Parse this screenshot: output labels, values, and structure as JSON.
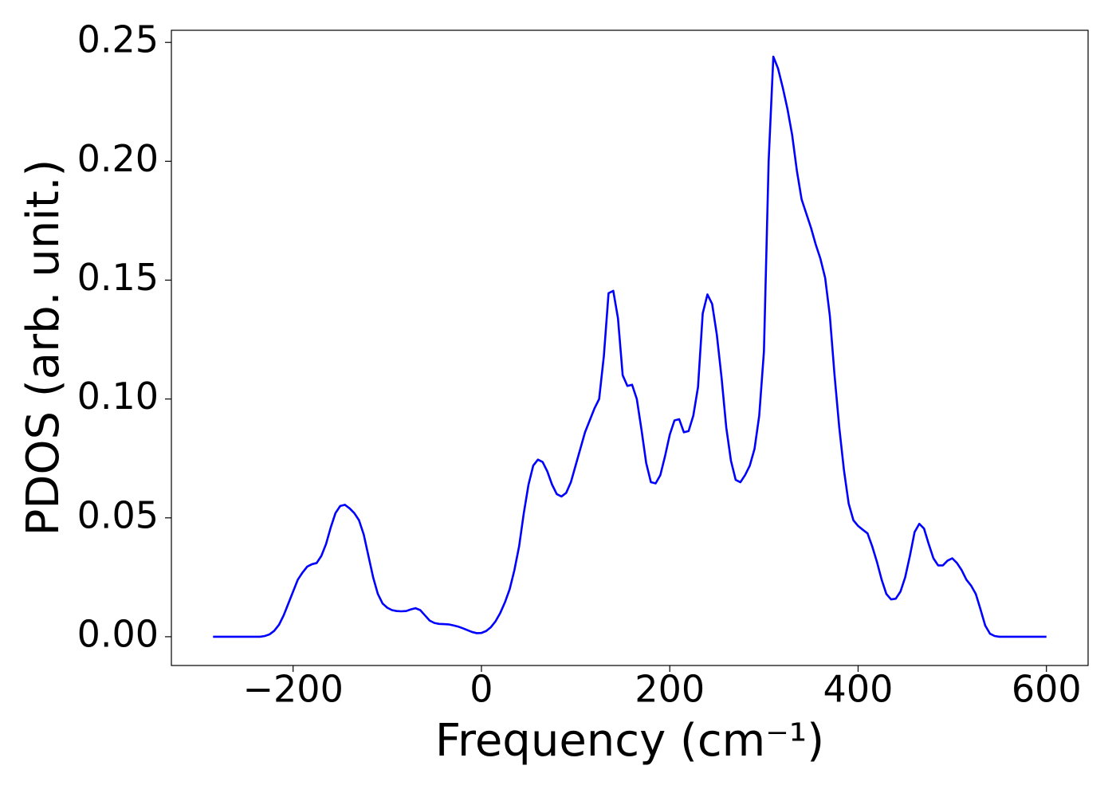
{
  "chart_data": {
    "type": "line",
    "xlabel": "Frequency (cm⁻¹)",
    "ylabel": "PDOS (arb. unit.)",
    "color": "#0000ff",
    "grid": false,
    "xlim": [
      -329.25,
      644.25
    ],
    "ylim": [
      -0.0121,
      0.2551
    ],
    "xticks": [
      {
        "value": -200,
        "label": "−200"
      },
      0,
      200,
      400,
      600
    ],
    "yticks": [
      {
        "value": 0,
        "label": "0.00"
      },
      {
        "value": 0.05,
        "label": "0.05"
      },
      {
        "value": 0.1,
        "label": "0.10"
      },
      {
        "value": 0.15,
        "label": "0.15"
      },
      {
        "value": 0.2,
        "label": "0.20"
      },
      {
        "value": 0.25,
        "label": "0.25"
      }
    ],
    "x": [
      -285,
      -280,
      -275,
      -270,
      -265,
      -260,
      -255,
      -250,
      -245,
      -240,
      -235,
      -230,
      -225,
      -220,
      -215,
      -210,
      -205,
      -200,
      -195,
      -190,
      -185,
      -180,
      -175,
      -170,
      -165,
      -160,
      -155,
      -150,
      -145,
      -140,
      -135,
      -130,
      -125,
      -120,
      -115,
      -110,
      -105,
      -100,
      -95,
      -90,
      -85,
      -80,
      -75,
      -70,
      -65,
      -60,
      -55,
      -50,
      -45,
      -40,
      -35,
      -30,
      -25,
      -20,
      -15,
      -10,
      -5,
      0,
      5,
      10,
      15,
      20,
      25,
      30,
      35,
      40,
      45,
      50,
      55,
      60,
      65,
      70,
      75,
      80,
      85,
      90,
      95,
      100,
      105,
      110,
      115,
      120,
      125,
      130,
      135,
      140,
      145,
      150,
      155,
      160,
      165,
      170,
      175,
      180,
      185,
      190,
      195,
      200,
      205,
      210,
      215,
      220,
      225,
      230,
      235,
      240,
      245,
      250,
      255,
      260,
      265,
      270,
      275,
      280,
      285,
      290,
      295,
      300,
      305,
      310,
      315,
      320,
      325,
      330,
      335,
      340,
      345,
      350,
      355,
      360,
      365,
      370,
      375,
      380,
      385,
      390,
      395,
      400,
      405,
      410,
      415,
      420,
      425,
      430,
      435,
      440,
      445,
      450,
      455,
      460,
      465,
      470,
      475,
      480,
      485,
      490,
      495,
      500,
      505,
      510,
      515,
      520,
      525,
      530,
      535,
      540,
      545,
      550,
      555,
      560,
      565,
      570,
      575,
      580,
      585,
      590,
      595,
      600
    ],
    "values": [
      0,
      0,
      0,
      0,
      0,
      0,
      0,
      0,
      0,
      0,
      0,
      0.0003,
      0.001,
      0.0025,
      0.005,
      0.009,
      0.014,
      0.019,
      0.024,
      0.027,
      0.0295,
      0.0305,
      0.031,
      0.034,
      0.039,
      0.046,
      0.052,
      0.055,
      0.0555,
      0.054,
      0.052,
      0.049,
      0.043,
      0.034,
      0.025,
      0.018,
      0.014,
      0.0122,
      0.0112,
      0.0108,
      0.0107,
      0.0108,
      0.0115,
      0.012,
      0.0112,
      0.009,
      0.0068,
      0.0058,
      0.0054,
      0.0053,
      0.0052,
      0.0048,
      0.0043,
      0.0036,
      0.0028,
      0.002,
      0.0015,
      0.0016,
      0.0024,
      0.004,
      0.0065,
      0.01,
      0.0145,
      0.02,
      0.028,
      0.038,
      0.052,
      0.064,
      0.072,
      0.0745,
      0.0735,
      0.0695,
      0.064,
      0.06,
      0.059,
      0.0605,
      0.065,
      0.072,
      0.079,
      0.086,
      0.091,
      0.096,
      0.1,
      0.118,
      0.1445,
      0.1455,
      0.134,
      0.11,
      0.1055,
      0.106,
      0.1,
      0.087,
      0.073,
      0.065,
      0.0645,
      0.068,
      0.076,
      0.085,
      0.091,
      0.0915,
      0.086,
      0.0865,
      0.093,
      0.105,
      0.136,
      0.144,
      0.14,
      0.127,
      0.109,
      0.088,
      0.074,
      0.066,
      0.065,
      0.068,
      0.072,
      0.079,
      0.093,
      0.12,
      0.2,
      0.244,
      0.239,
      0.231,
      0.222,
      0.211,
      0.196,
      0.184,
      0.178,
      0.172,
      0.165,
      0.159,
      0.151,
      0.135,
      0.11,
      0.088,
      0.07,
      0.056,
      0.049,
      0.0466,
      0.045,
      0.0435,
      0.038,
      0.0315,
      0.024,
      0.018,
      0.0157,
      0.016,
      0.019,
      0.025,
      0.034,
      0.044,
      0.0475,
      0.0455,
      0.039,
      0.033,
      0.03,
      0.03,
      0.032,
      0.033,
      0.031,
      0.028,
      0.024,
      0.0215,
      0.018,
      0.0115,
      0.0047,
      0.0013,
      0.0003,
      0,
      0,
      0,
      0,
      0,
      0,
      0,
      0,
      0,
      0,
      0
    ]
  }
}
